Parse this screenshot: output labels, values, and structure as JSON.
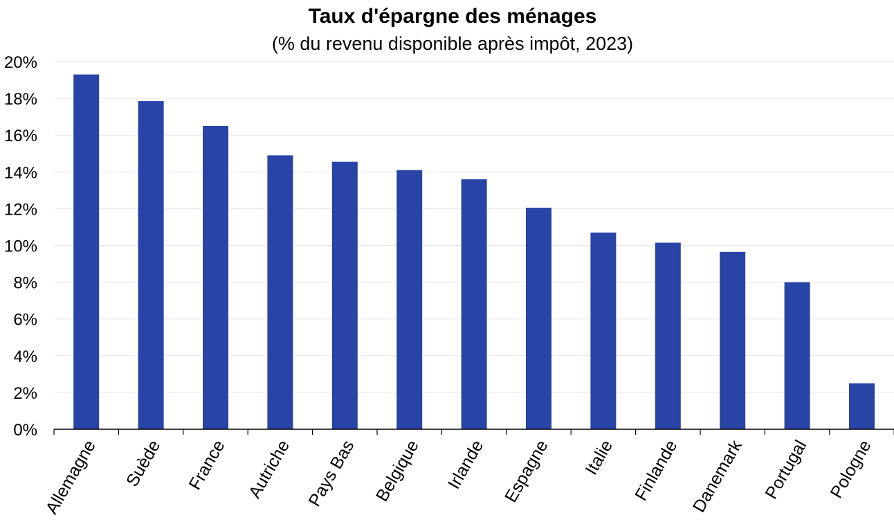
{
  "chart_data": {
    "type": "bar",
    "title": "Taux d'épargne des ménages",
    "subtitle": "(% du revenu disponible après impôt, 2023)",
    "xlabel": "",
    "ylabel": "",
    "categories": [
      "Allemagne",
      "Suède",
      "France",
      "Autriche",
      "Pays Bas",
      "Belgique",
      "Irlande",
      "Espagne",
      "Italie",
      "Finlande",
      "Danemark",
      "Portugal",
      "Pologne"
    ],
    "values": [
      19.3,
      17.85,
      16.5,
      14.9,
      14.55,
      14.1,
      13.6,
      12.05,
      10.7,
      10.15,
      9.65,
      8.0,
      2.5
    ],
    "ylim": [
      0,
      20
    ],
    "yticks": [
      0,
      2,
      4,
      6,
      8,
      10,
      12,
      14,
      16,
      18,
      20
    ],
    "ytick_suffix": "%",
    "bar_color": "#2744a6",
    "grid": true,
    "legend": "none"
  }
}
